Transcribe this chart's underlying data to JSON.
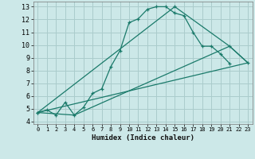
{
  "xlabel": "Humidex (Indice chaleur)",
  "background_color": "#cce8e8",
  "grid_color": "#aacccc",
  "line_color": "#1a7a6a",
  "xlim": [
    -0.5,
    23.5
  ],
  "ylim": [
    3.8,
    13.4
  ],
  "xticks": [
    0,
    1,
    2,
    3,
    4,
    5,
    6,
    7,
    8,
    9,
    10,
    11,
    12,
    13,
    14,
    15,
    16,
    17,
    18,
    19,
    20,
    21,
    22,
    23
  ],
  "yticks": [
    4,
    5,
    6,
    7,
    8,
    9,
    10,
    11,
    12,
    13
  ],
  "line1_x": [
    0,
    1,
    2,
    3,
    4,
    5,
    6,
    7,
    8,
    9,
    10,
    11,
    12,
    13,
    14,
    15,
    16,
    17,
    18,
    19,
    20,
    21
  ],
  "line1_y": [
    4.7,
    4.9,
    4.5,
    5.5,
    4.5,
    5.1,
    6.2,
    6.55,
    8.3,
    9.55,
    11.75,
    12.05,
    12.8,
    13.0,
    13.0,
    12.5,
    12.3,
    11.0,
    9.9,
    9.9,
    9.3,
    8.55
  ],
  "line2_x": [
    0,
    15,
    21,
    23
  ],
  "line2_y": [
    4.7,
    13.0,
    9.9,
    8.6
  ],
  "line3_x": [
    0,
    23
  ],
  "line3_y": [
    4.7,
    8.6
  ],
  "line4_x": [
    0,
    4,
    21,
    23
  ],
  "line4_y": [
    4.7,
    4.5,
    9.9,
    8.6
  ]
}
